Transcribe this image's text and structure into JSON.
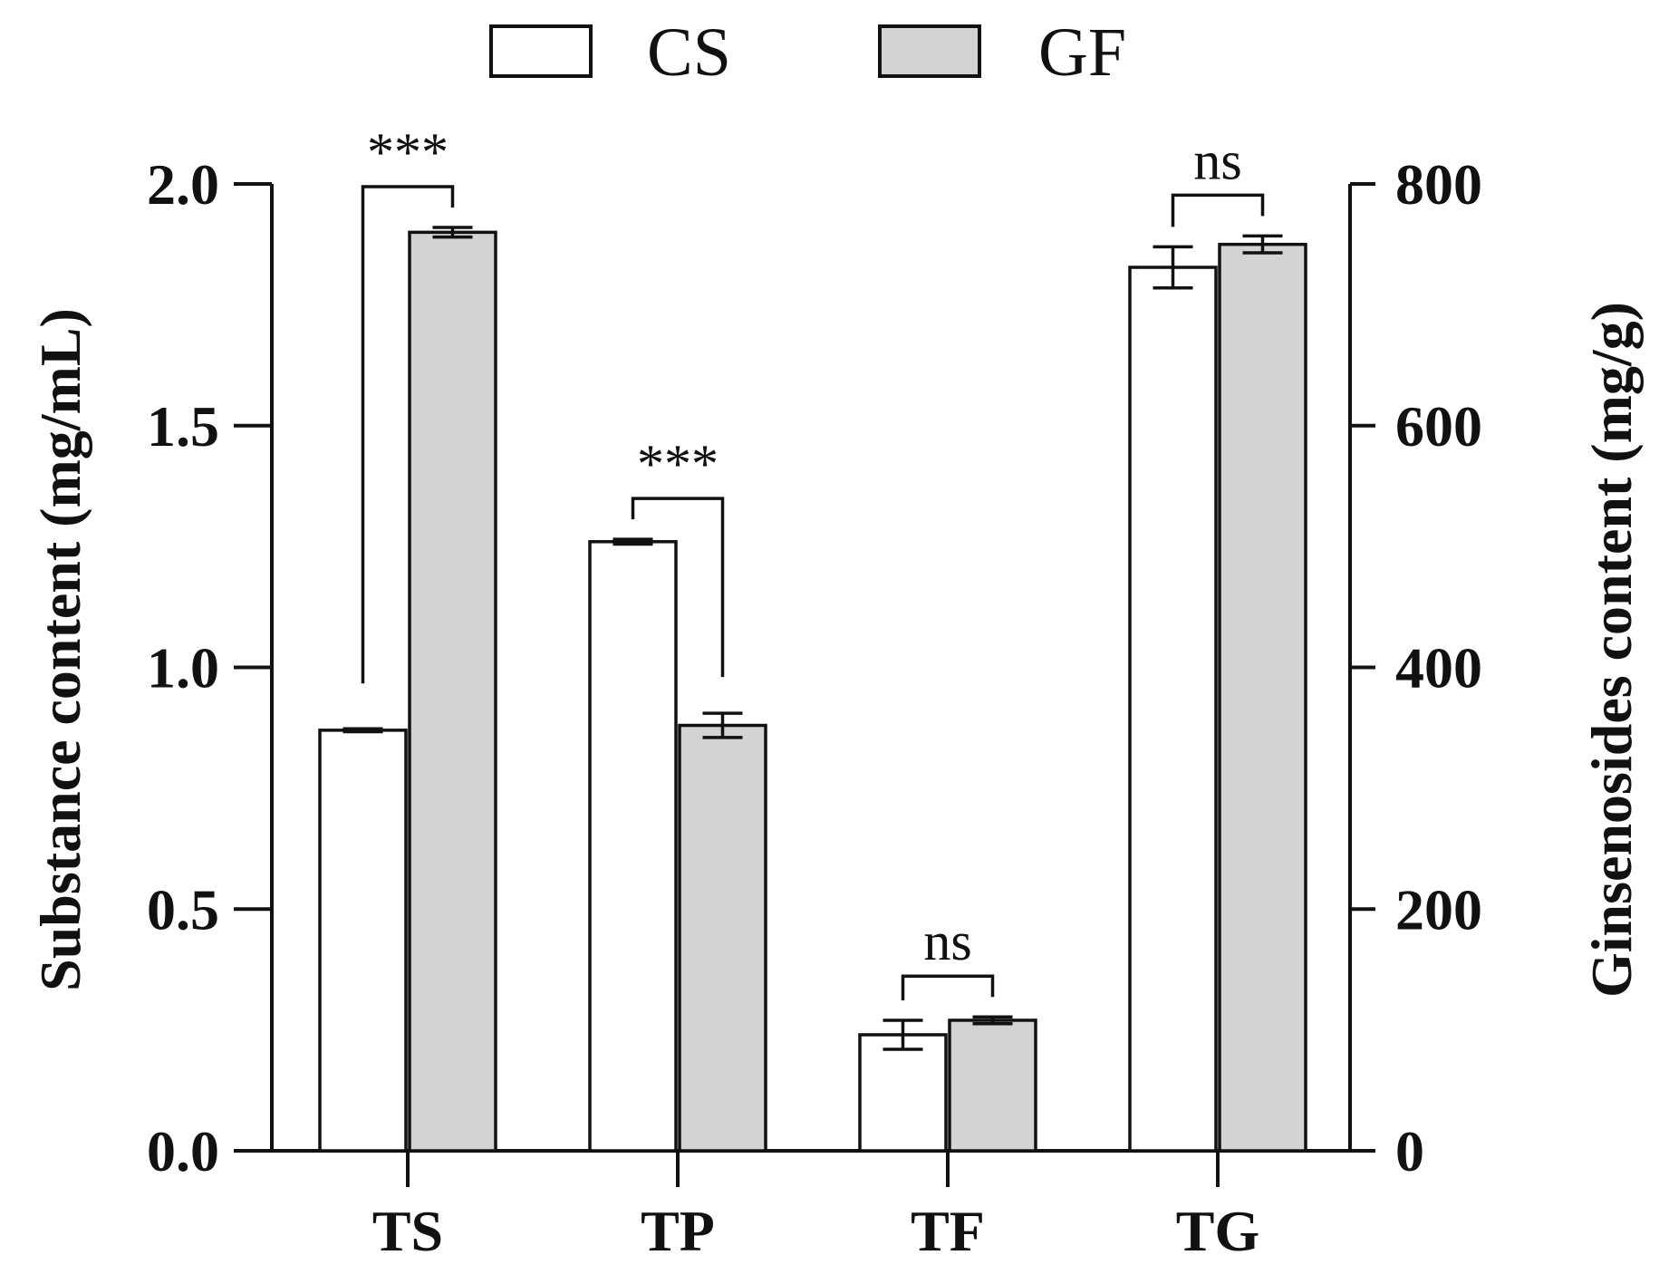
{
  "chart_data": {
    "type": "bar",
    "categories": [
      "TS",
      "TP",
      "TF",
      "TG"
    ],
    "legend": [
      {
        "name": "CS",
        "color": "#ffffff"
      },
      {
        "name": "GF",
        "color": "#d3d3d3"
      }
    ],
    "series": [
      {
        "name": "CS",
        "values": [
          0.87,
          1.26,
          0.24,
          731
        ],
        "errors": [
          0.003,
          0.005,
          0.03,
          17
        ],
        "axis": [
          "left",
          "left",
          "left",
          "right"
        ]
      },
      {
        "name": "GF",
        "values": [
          1.9,
          0.88,
          0.27,
          750
        ],
        "errors": [
          0.01,
          0.025,
          0.007,
          7
        ],
        "axis": [
          "left",
          "left",
          "left",
          "right"
        ]
      }
    ],
    "left_axis": {
      "label": "Substance content (mg/mL)",
      "ylim": [
        0,
        2.0
      ],
      "ticks": [
        "0.0",
        "0.5",
        "1.0",
        "1.5",
        "2.0"
      ]
    },
    "right_axis": {
      "label": "Ginsenosides content (mg/g)",
      "ylim": [
        0,
        800
      ],
      "ticks": [
        "0",
        "200",
        "400",
        "600",
        "800"
      ]
    },
    "significance": [
      "***",
      "***",
      "ns",
      "ns"
    ],
    "colors": {
      "axis": "#111111",
      "cs_fill": "#ffffff",
      "gf_fill": "#d3d3d3"
    }
  }
}
